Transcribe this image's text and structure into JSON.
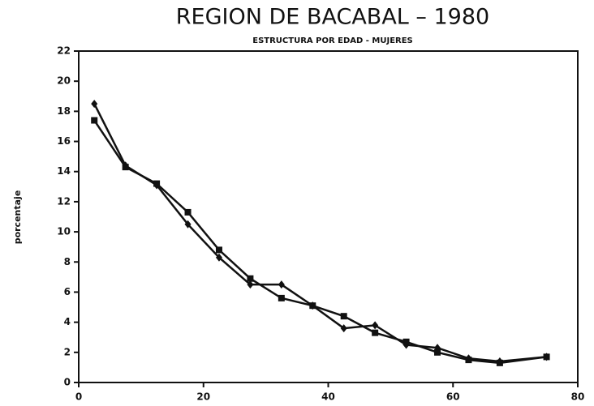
{
  "chart_data": {
    "type": "line",
    "title": "REGION DE BACABAL – 1980",
    "subtitle": "ESTRUCTURA POR EDAD - MUJERES",
    "ylabel": "porcentaje",
    "x": [
      2.5,
      7.5,
      12.5,
      17.5,
      22.5,
      27.5,
      32.5,
      37.5,
      42.5,
      47.5,
      52.5,
      57.5,
      62.5,
      67.5,
      75
    ],
    "series": [
      {
        "color": "#111111",
        "marker": "diamond",
        "values": [
          18.5,
          14.4,
          13.1,
          10.5,
          8.3,
          6.5,
          6.5,
          5.1,
          3.6,
          3.8,
          2.5,
          2.3,
          1.6,
          1.4,
          1.7
        ]
      },
      {
        "color": "#111111",
        "marker": "square",
        "values": [
          17.4,
          14.3,
          13.2,
          11.3,
          8.8,
          6.9,
          5.6,
          5.1,
          4.4,
          3.3,
          2.7,
          2.0,
          1.5,
          1.3,
          1.7
        ]
      }
    ],
    "xlim": [
      0,
      80
    ],
    "xticks": [
      0,
      20,
      40,
      60,
      80
    ],
    "ylim": [
      0,
      22
    ],
    "yticks": [
      0,
      2,
      4,
      6,
      8,
      10,
      12,
      14,
      16,
      18,
      20,
      22
    ],
    "grid": false
  }
}
